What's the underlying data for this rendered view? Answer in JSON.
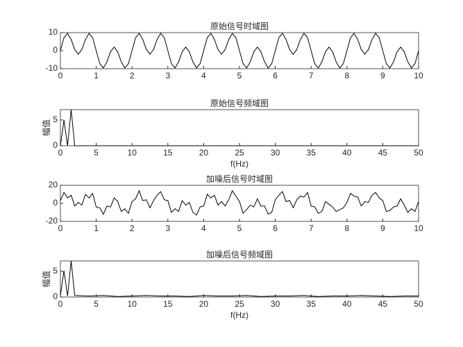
{
  "chart_data": [
    {
      "type": "line",
      "title": "原始信号时域图",
      "color": "#000000",
      "x": [
        0,
        0.1,
        0.2,
        0.3,
        0.4,
        0.5,
        0.6,
        0.7,
        0.8,
        0.9,
        1,
        1.1,
        1.2,
        1.3,
        1.4,
        1.5,
        1.6,
        1.7,
        1.8,
        1.9,
        2,
        2.1,
        2.2,
        2.3,
        2.4,
        2.5,
        2.6,
        2.7,
        2.8,
        2.9,
        3,
        3.1,
        3.2,
        3.3,
        3.4,
        3.5,
        3.6,
        3.7,
        3.8,
        3.9,
        4,
        4.1,
        4.2,
        4.3,
        4.4,
        4.5,
        4.6,
        4.7,
        4.8,
        4.9,
        5,
        5.1,
        5.2,
        5.3,
        5.4,
        5.5,
        5.6,
        5.7,
        5.8,
        5.9,
        6,
        6.1,
        6.2,
        6.3,
        6.4,
        6.5,
        6.6,
        6.7,
        6.8,
        6.9,
        7,
        7.1,
        7.2,
        7.3,
        7.4,
        7.5,
        7.6,
        7.7,
        7.8,
        7.9,
        8,
        8.1,
        8.2,
        8.3,
        8.4,
        8.5,
        8.6,
        8.7,
        8.8,
        8.9,
        9,
        9.1,
        9.2,
        9.3,
        9.4,
        9.5,
        9.6,
        9.7,
        9.8,
        9.9,
        10
      ],
      "values": [
        0,
        7.21,
        9.6,
        6.21,
        0.64,
        -2,
        0.64,
        6.21,
        9.6,
        7.21,
        0,
        -7.21,
        -9.6,
        -6.21,
        -0.64,
        2,
        -0.64,
        -6.21,
        -9.6,
        -7.21,
        0,
        7.21,
        9.6,
        6.21,
        0.64,
        -2,
        0.64,
        6.21,
        9.6,
        7.21,
        0,
        -7.21,
        -9.6,
        -6.21,
        -0.64,
        2,
        -0.64,
        -6.21,
        -9.6,
        -7.21,
        0,
        7.21,
        9.6,
        6.21,
        0.64,
        -2,
        0.64,
        6.21,
        9.6,
        7.21,
        0,
        -7.21,
        -9.6,
        -6.21,
        -0.64,
        2,
        -0.64,
        -6.21,
        -9.6,
        -7.21,
        0,
        7.21,
        9.6,
        6.21,
        0.64,
        -2,
        0.64,
        6.21,
        9.6,
        7.21,
        0,
        -7.21,
        -9.6,
        -6.21,
        -0.64,
        2,
        -0.64,
        -6.21,
        -9.6,
        -7.21,
        0,
        7.21,
        9.6,
        6.21,
        0.64,
        -2,
        0.64,
        6.21,
        9.6,
        7.21,
        0,
        -7.21,
        -9.6,
        -6.21,
        -0.64,
        2,
        -0.64,
        -6.21,
        -9.6,
        -7.21,
        0
      ],
      "xlim": [
        0,
        10
      ],
      "xticks": [
        0,
        1,
        2,
        3,
        4,
        5,
        6,
        7,
        8,
        9,
        10
      ],
      "ylim": [
        -10,
        10
      ],
      "yticks": [
        -10,
        0,
        10
      ]
    },
    {
      "type": "line",
      "title": "原始信号频域图",
      "x_label": "f(Hz)",
      "y_label": "幅值",
      "color": "#000000",
      "x": [
        0,
        0.5,
        1,
        1.5,
        2,
        50
      ],
      "values": [
        0,
        5,
        0,
        7,
        0,
        0
      ],
      "xlim": [
        0,
        50
      ],
      "xticks": [
        0,
        5,
        10,
        15,
        20,
        25,
        30,
        35,
        40,
        45,
        50
      ],
      "ylim": [
        0,
        7
      ],
      "yticks": [
        0,
        5
      ]
    },
    {
      "type": "line",
      "title": "加噪后信号时域图",
      "color": "#000000",
      "x": [
        0,
        0.1,
        0.2,
        0.3,
        0.4,
        0.5,
        0.6,
        0.7,
        0.8,
        0.9,
        1,
        1.1,
        1.2,
        1.3,
        1.4,
        1.5,
        1.6,
        1.7,
        1.8,
        1.9,
        2,
        2.1,
        2.2,
        2.3,
        2.4,
        2.5,
        2.6,
        2.7,
        2.8,
        2.9,
        3,
        3.1,
        3.2,
        3.3,
        3.4,
        3.5,
        3.6,
        3.7,
        3.8,
        3.9,
        4,
        4.1,
        4.2,
        4.3,
        4.4,
        4.5,
        4.6,
        4.7,
        4.8,
        4.9,
        5,
        5.1,
        5.2,
        5.3,
        5.4,
        5.5,
        5.6,
        5.7,
        5.8,
        5.9,
        6,
        6.1,
        6.2,
        6.3,
        6.4,
        6.5,
        6.6,
        6.7,
        6.8,
        6.9,
        7,
        7.1,
        7.2,
        7.3,
        7.4,
        7.5,
        7.6,
        7.7,
        7.8,
        7.9,
        8,
        8.1,
        8.2,
        8.3,
        8.4,
        8.5,
        8.6,
        8.7,
        8.8,
        8.9,
        9,
        9.1,
        9.2,
        9.3,
        9.4,
        9.5,
        9.6,
        9.7,
        9.8,
        9.9,
        10
      ],
      "values": [
        3,
        12,
        6,
        9,
        -3,
        1,
        -2,
        10,
        6,
        11,
        -4,
        -5,
        -12,
        -3,
        -4,
        6,
        2,
        -9,
        -6,
        -11,
        2,
        5,
        14,
        3,
        4,
        -5,
        3,
        9,
        13,
        4,
        3,
        -10,
        -6,
        -9,
        3,
        -2,
        1,
        -10,
        -13,
        -4,
        -3,
        10,
        6,
        9,
        -2,
        2,
        -3,
        4,
        14,
        8,
        2,
        -11,
        -7,
        -2,
        -4,
        5,
        -3,
        -3,
        -12,
        -10,
        4,
        9,
        13,
        2,
        3,
        -5,
        4,
        8,
        7,
        12,
        -3,
        -4,
        -11,
        -9,
        2,
        -1,
        -4,
        -9,
        -7,
        -5,
        1,
        11,
        8,
        7,
        -3,
        2,
        1,
        9,
        12,
        6,
        3,
        -9,
        -8,
        -4,
        -3,
        5,
        -2,
        -10,
        -6,
        -9,
        2
      ],
      "xlim": [
        0,
        10
      ],
      "xticks": [
        0,
        1,
        2,
        3,
        4,
        5,
        6,
        7,
        8,
        9,
        10
      ],
      "ylim": [
        -20,
        20
      ],
      "yticks": [
        -20,
        0,
        20
      ]
    },
    {
      "type": "line",
      "title": "加噪后信号频域图",
      "x_label": "f(Hz)",
      "y_label": "幅值",
      "color": "#000000",
      "x": [
        0,
        0.5,
        1,
        1.5,
        2,
        4,
        6,
        8,
        10,
        12,
        14,
        16,
        18,
        20,
        22,
        24,
        26,
        28,
        30,
        32,
        34,
        36,
        38,
        40,
        42,
        44,
        46,
        48,
        50
      ],
      "values": [
        0.3,
        5.1,
        0.2,
        7,
        0.3,
        0.2,
        0.3,
        0.1,
        0.2,
        0.3,
        0.2,
        0.2,
        0.1,
        0.3,
        0.2,
        0.2,
        0.3,
        0.1,
        0.2,
        0.2,
        0.3,
        0.1,
        0.2,
        0.2,
        0.3,
        0.2,
        0.1,
        0.2,
        0.2
      ],
      "xlim": [
        0,
        50
      ],
      "xticks": [
        0,
        5,
        10,
        15,
        20,
        25,
        30,
        35,
        40,
        45,
        50
      ],
      "ylim": [
        0,
        7
      ],
      "yticks": [
        0,
        5
      ]
    }
  ]
}
